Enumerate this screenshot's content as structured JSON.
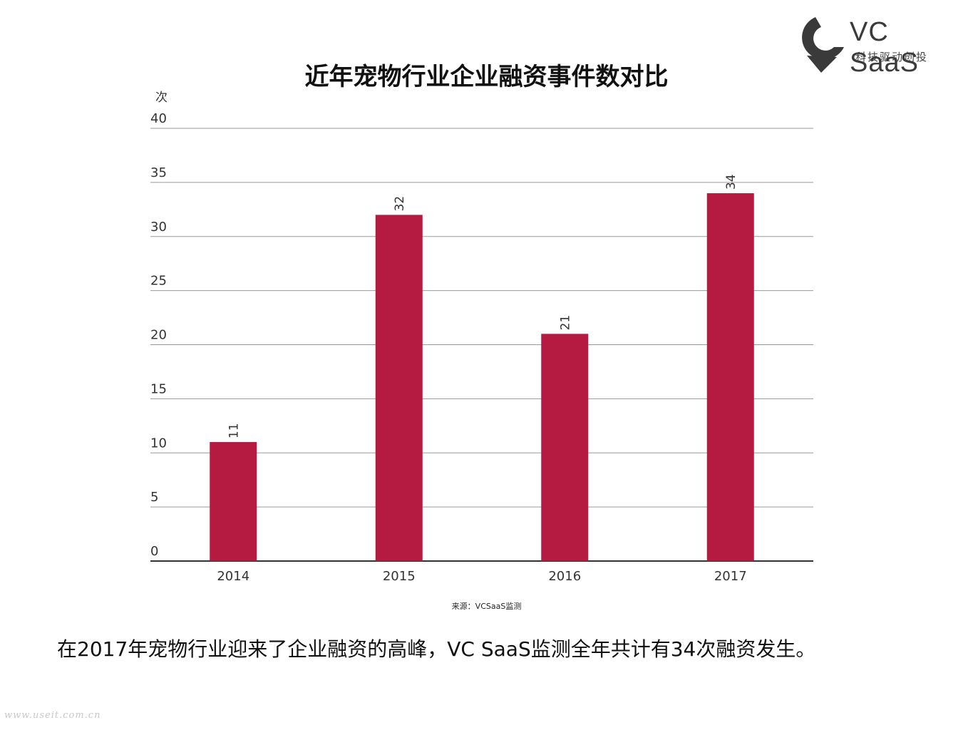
{
  "logo": {
    "brand": "VC SaaS",
    "slogan": "科技驱动创投",
    "icon": "vcsaas-logo-icon",
    "color": "#3a3a3a"
  },
  "chart_data": {
    "type": "bar",
    "title": "近年宠物行业企业融资事件数对比",
    "ylabel": "次",
    "xlabel": "",
    "categories": [
      "2014",
      "2015",
      "2016",
      "2017"
    ],
    "values": [
      11,
      32,
      21,
      34
    ],
    "ylim": [
      0,
      40
    ],
    "yticks": [
      0,
      5,
      10,
      15,
      20,
      25,
      30,
      35,
      40
    ],
    "data_labels": true,
    "grid": true,
    "bar_color": "#b51a40"
  },
  "source": "来源：VCSaaS监测",
  "caption": "在2017年宠物行业迎来了企业融资的高峰，VC SaaS监测全年共计有34次融资发生。",
  "watermark": "www.useit.com.cn"
}
